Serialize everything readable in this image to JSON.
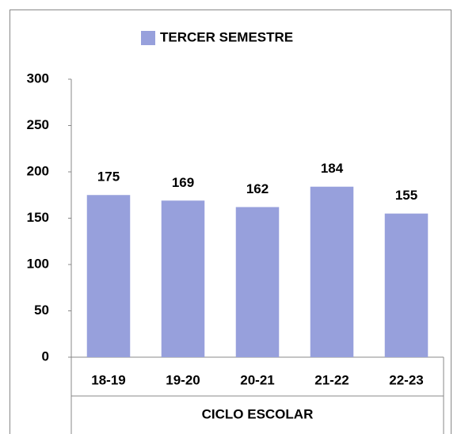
{
  "chart_data": {
    "type": "bar",
    "x_label": "CICLO ESCOLAR",
    "categories": [
      "18-19",
      "19-20",
      "20-21",
      "21-22",
      "22-23"
    ],
    "series": [
      {
        "name": "TERCER SEMESTRE",
        "color": "#97a0dc",
        "values": [
          175,
          169,
          162,
          184,
          155
        ]
      }
    ],
    "ylim": [
      0,
      300
    ],
    "yticks": [
      0,
      50,
      100,
      150,
      200,
      250,
      300
    ],
    "legend": "top"
  }
}
